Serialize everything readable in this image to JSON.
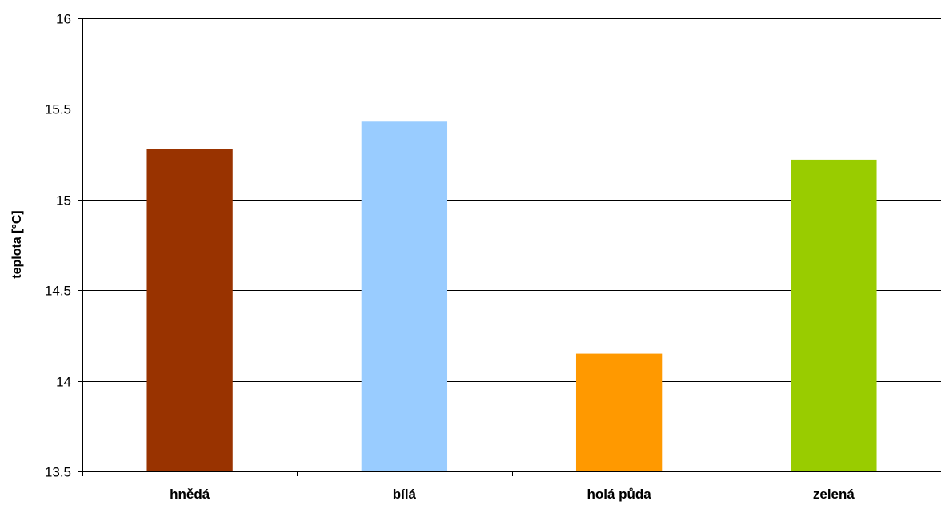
{
  "chart_data": {
    "type": "bar",
    "title": "",
    "xlabel": "",
    "ylabel": "teplota [°C]",
    "ylim": [
      13.5,
      16
    ],
    "yticks": [
      "13.5",
      "14",
      "14.5",
      "15",
      "15.5",
      "16"
    ],
    "categories": [
      "hnědá",
      "bílá",
      "holá půda",
      "zelená"
    ],
    "values": [
      15.28,
      15.43,
      14.15,
      15.22
    ],
    "colors": [
      "#993300",
      "#99CCFF",
      "#FF9900",
      "#99CC00"
    ],
    "grid": true,
    "legend": "none"
  }
}
